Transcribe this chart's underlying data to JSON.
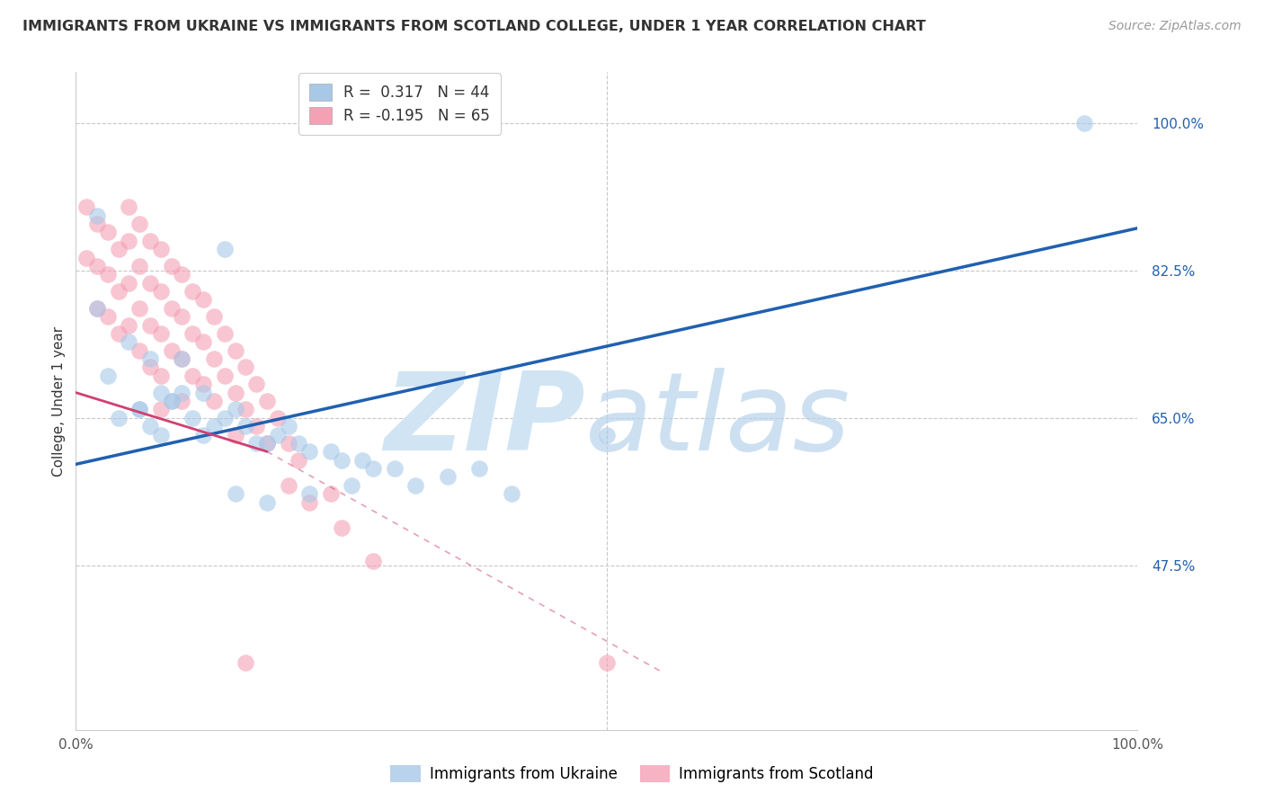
{
  "title": "IMMIGRANTS FROM UKRAINE VS IMMIGRANTS FROM SCOTLAND COLLEGE, UNDER 1 YEAR CORRELATION CHART",
  "source": "Source: ZipAtlas.com",
  "ylabel": "College, Under 1 year",
  "watermark_zip": "ZIP",
  "watermark_atlas": "atlas",
  "legend_ukraine": "Immigrants from Ukraine",
  "legend_scotland": "Immigrants from Scotland",
  "ukraine_R": 0.317,
  "ukraine_N": 44,
  "scotland_R": -0.195,
  "scotland_N": 65,
  "ukraine_color": "#a8c8e8",
  "scotland_color": "#f4a0b5",
  "ukraine_line_color": "#2060b0",
  "scotland_line_color": "#d04070",
  "background_color": "#ffffff",
  "grid_color": "#c8c8c8",
  "xlim": [
    0.0,
    1.0
  ],
  "ylim": [
    0.28,
    1.06
  ],
  "yticks": [
    0.475,
    0.65,
    0.825,
    1.0
  ],
  "ytick_labels": [
    "47.5%",
    "65.0%",
    "82.5%",
    "100.0%"
  ],
  "ukraine_line_x0": 0.0,
  "ukraine_line_y0": 0.595,
  "ukraine_line_x1": 1.0,
  "ukraine_line_y1": 0.875,
  "scotland_line_solid_x0": 0.0,
  "scotland_line_solid_y0": 0.68,
  "scotland_line_solid_x1": 0.18,
  "scotland_line_solid_y1": 0.61,
  "scotland_line_dash_x0": 0.18,
  "scotland_line_dash_y0": 0.61,
  "scotland_line_dash_x1": 0.55,
  "scotland_line_dash_y1": 0.35,
  "ukraine_points_x": [
    0.02,
    0.14,
    0.02,
    0.05,
    0.07,
    0.03,
    0.08,
    0.06,
    0.1,
    0.04,
    0.09,
    0.12,
    0.07,
    0.06,
    0.08,
    0.11,
    0.09,
    0.13,
    0.15,
    0.1,
    0.12,
    0.16,
    0.18,
    0.14,
    0.2,
    0.17,
    0.22,
    0.19,
    0.25,
    0.21,
    0.28,
    0.24,
    0.27,
    0.3,
    0.26,
    0.35,
    0.32,
    0.38,
    0.41,
    0.22,
    0.18,
    0.15,
    0.5,
    0.95
  ],
  "ukraine_points_y": [
    0.89,
    0.85,
    0.78,
    0.74,
    0.72,
    0.7,
    0.68,
    0.66,
    0.72,
    0.65,
    0.67,
    0.68,
    0.64,
    0.66,
    0.63,
    0.65,
    0.67,
    0.64,
    0.66,
    0.68,
    0.63,
    0.64,
    0.62,
    0.65,
    0.64,
    0.62,
    0.61,
    0.63,
    0.6,
    0.62,
    0.59,
    0.61,
    0.6,
    0.59,
    0.57,
    0.58,
    0.57,
    0.59,
    0.56,
    0.56,
    0.55,
    0.56,
    0.63,
    1.0
  ],
  "scotland_points_x": [
    0.01,
    0.01,
    0.02,
    0.02,
    0.02,
    0.03,
    0.03,
    0.03,
    0.04,
    0.04,
    0.04,
    0.05,
    0.05,
    0.05,
    0.05,
    0.06,
    0.06,
    0.06,
    0.06,
    0.07,
    0.07,
    0.07,
    0.07,
    0.08,
    0.08,
    0.08,
    0.08,
    0.08,
    0.09,
    0.09,
    0.09,
    0.1,
    0.1,
    0.1,
    0.1,
    0.11,
    0.11,
    0.11,
    0.12,
    0.12,
    0.12,
    0.13,
    0.13,
    0.13,
    0.14,
    0.14,
    0.15,
    0.15,
    0.15,
    0.16,
    0.16,
    0.17,
    0.17,
    0.18,
    0.18,
    0.19,
    0.2,
    0.2,
    0.21,
    0.22,
    0.24,
    0.25,
    0.28,
    0.16,
    0.5
  ],
  "scotland_points_y": [
    0.9,
    0.84,
    0.88,
    0.83,
    0.78,
    0.87,
    0.82,
    0.77,
    0.85,
    0.8,
    0.75,
    0.9,
    0.86,
    0.81,
    0.76,
    0.88,
    0.83,
    0.78,
    0.73,
    0.86,
    0.81,
    0.76,
    0.71,
    0.85,
    0.8,
    0.75,
    0.7,
    0.66,
    0.83,
    0.78,
    0.73,
    0.82,
    0.77,
    0.72,
    0.67,
    0.8,
    0.75,
    0.7,
    0.79,
    0.74,
    0.69,
    0.77,
    0.72,
    0.67,
    0.75,
    0.7,
    0.73,
    0.68,
    0.63,
    0.71,
    0.66,
    0.69,
    0.64,
    0.67,
    0.62,
    0.65,
    0.62,
    0.57,
    0.6,
    0.55,
    0.56,
    0.52,
    0.48,
    0.36,
    0.36
  ],
  "title_fontsize": 11.5,
  "source_fontsize": 10,
  "tick_fontsize": 11,
  "ylabel_fontsize": 11,
  "legend_fontsize": 12,
  "watermark_color": "#d0e4f4",
  "axis_color": "#888888",
  "tick_color_y": "#2060b0",
  "tick_color_x": "#555555"
}
